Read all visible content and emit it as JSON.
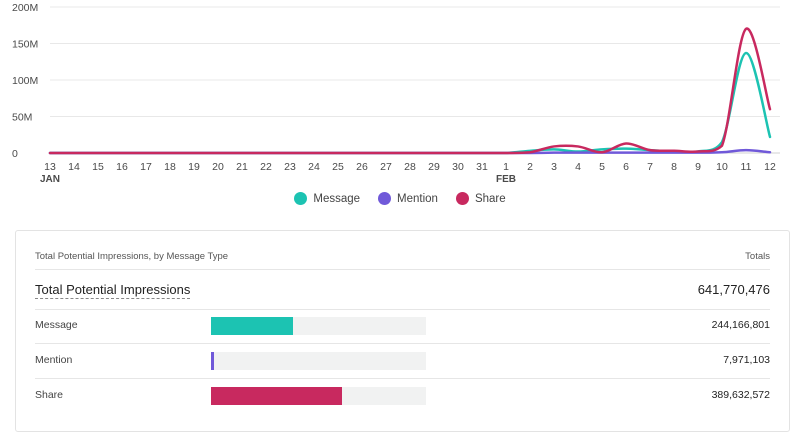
{
  "chart_data": {
    "type": "line",
    "x": [
      "13",
      "14",
      "15",
      "16",
      "17",
      "18",
      "19",
      "20",
      "21",
      "22",
      "23",
      "24",
      "25",
      "26",
      "27",
      "28",
      "29",
      "30",
      "31",
      "1",
      "2",
      "3",
      "4",
      "5",
      "6",
      "7",
      "8",
      "9",
      "10",
      "11",
      "12"
    ],
    "month_labels": [
      {
        "index": 0,
        "label": "JAN"
      },
      {
        "index": 19,
        "label": "FEB"
      }
    ],
    "y_ticks": [
      "0",
      "50M",
      "100M",
      "150M",
      "200M"
    ],
    "ylim": [
      0,
      200
    ],
    "y_unit": "M",
    "grid": true,
    "legend_placement": "bottom",
    "series": [
      {
        "name": "Message",
        "color": "#1cc3b2",
        "values": [
          0,
          0,
          0,
          0,
          0,
          0,
          0,
          0,
          0,
          0,
          0,
          0,
          0,
          0,
          0,
          0,
          0,
          0,
          0,
          0,
          3,
          5,
          2,
          5,
          6,
          4,
          2,
          2,
          15,
          137,
          22
        ]
      },
      {
        "name": "Mention",
        "color": "#7059d9",
        "values": [
          0,
          0,
          0,
          0,
          0,
          0,
          0,
          0,
          0,
          0,
          0,
          0,
          0,
          0,
          0,
          0,
          0,
          0,
          0,
          0,
          0,
          0.5,
          0.5,
          0.5,
          0.5,
          0.5,
          0.5,
          0.5,
          1,
          4,
          1
        ]
      },
      {
        "name": "Share",
        "color": "#c8295f",
        "values": [
          0,
          0,
          0,
          0,
          0,
          0,
          0,
          0,
          0,
          0,
          0,
          0,
          0,
          0,
          0,
          0,
          0,
          0,
          0,
          0,
          1,
          9,
          9,
          1,
          13,
          4,
          3,
          2,
          10,
          170,
          60
        ]
      }
    ]
  },
  "legend": [
    {
      "label": "Message",
      "color": "#1cc3b2"
    },
    {
      "label": "Mention",
      "color": "#7059d9"
    },
    {
      "label": "Share",
      "color": "#c8295f"
    }
  ],
  "table": {
    "title": "Total Potential Impressions, by Message Type",
    "totals_header": "Totals",
    "total_label": "Total Potential Impressions",
    "total_value": "641,770,476",
    "rows": [
      {
        "label": "Message",
        "value": "244,166,801",
        "fraction": 0.38,
        "color": "#1cc3b2"
      },
      {
        "label": "Mention",
        "value": "7,971,103",
        "fraction": 0.012,
        "color": "#7059d9"
      },
      {
        "label": "Share",
        "value": "389,632,572",
        "fraction": 0.607,
        "color": "#c8295f"
      }
    ]
  }
}
